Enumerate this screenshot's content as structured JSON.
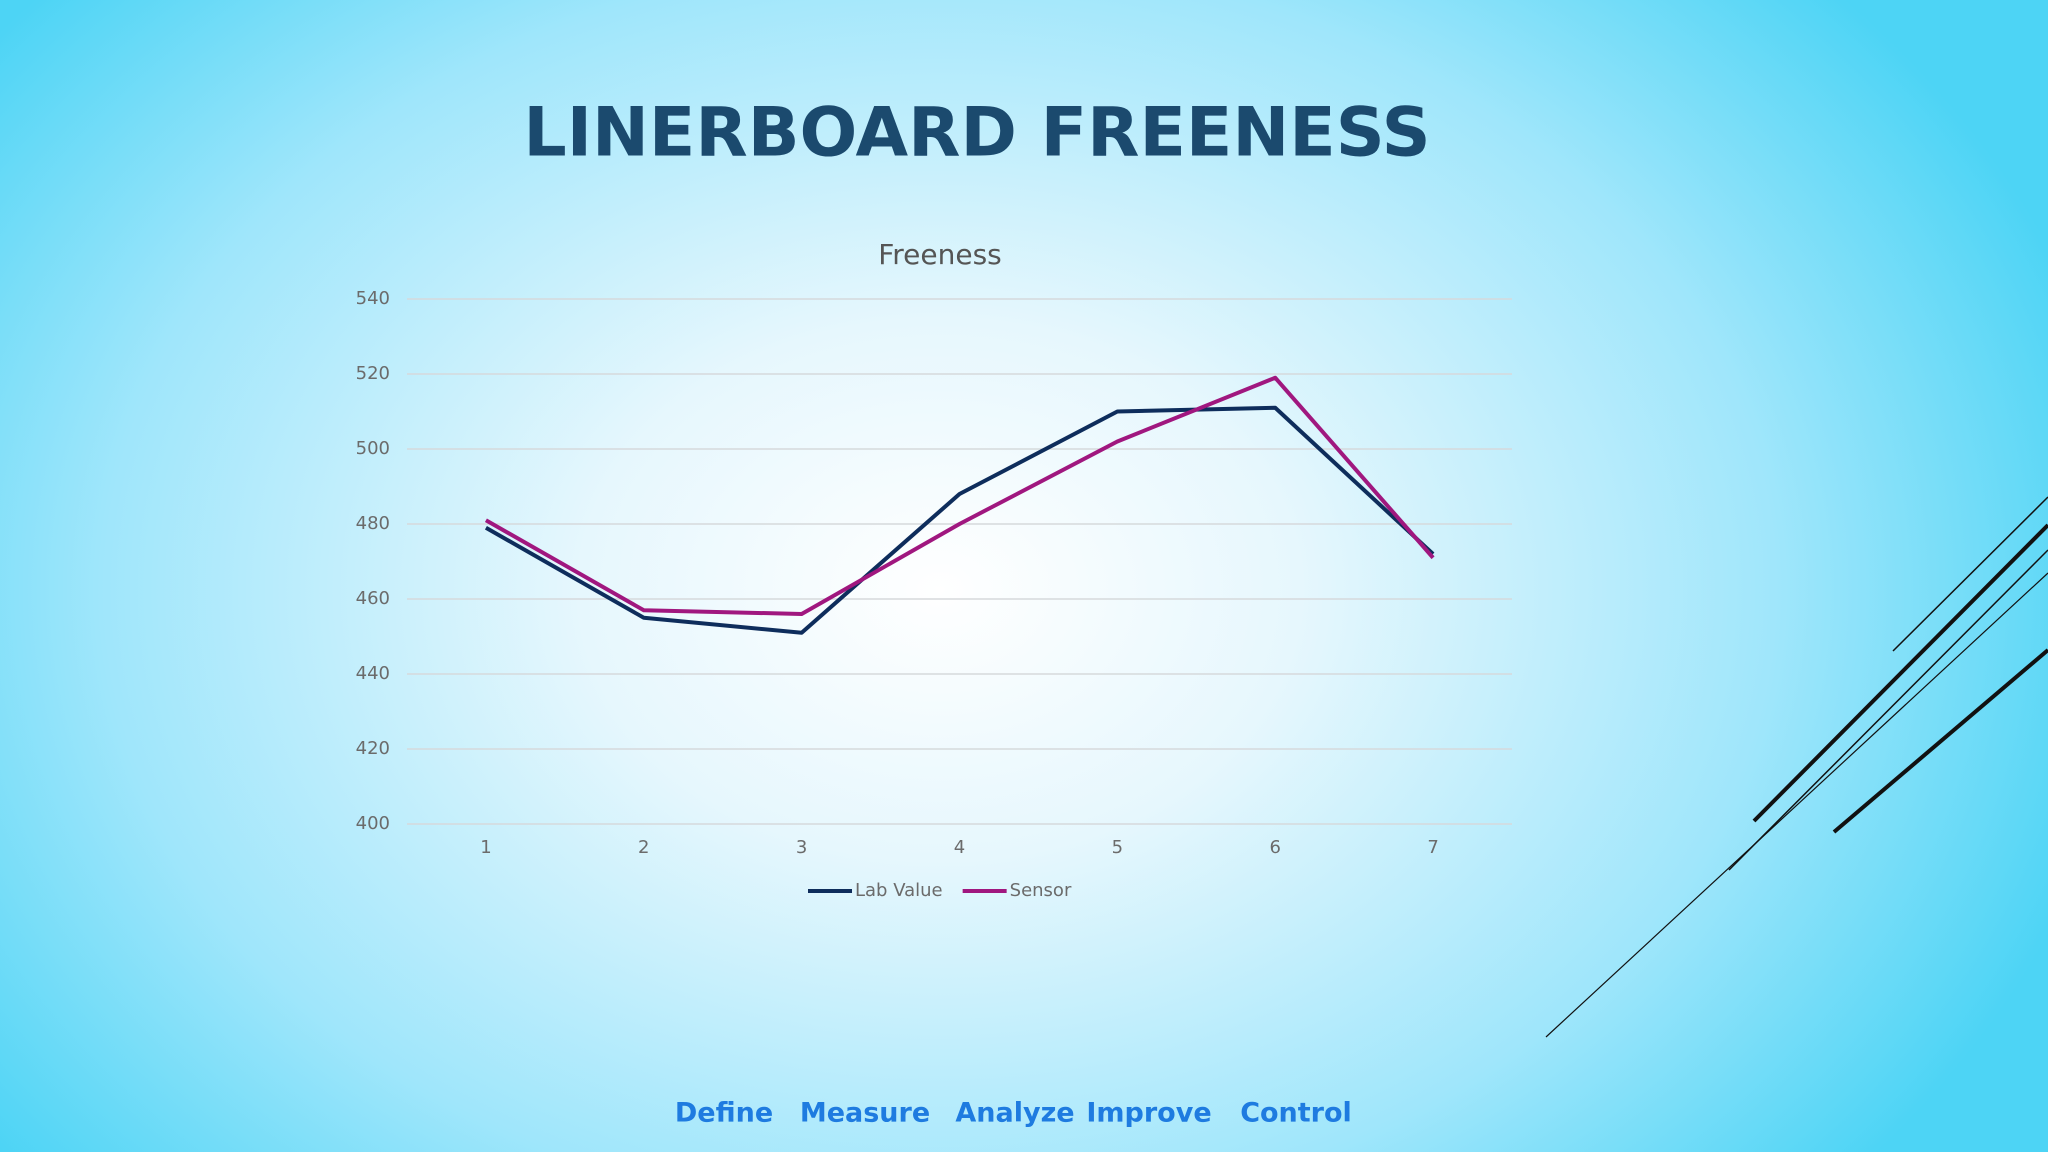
{
  "slide": {
    "title": "LINERBOARD FREENESS",
    "nav": [
      "Define",
      "Measure",
      "Analyze",
      "Improve",
      "Control"
    ]
  },
  "chart_data": {
    "type": "line",
    "title": "Freeness",
    "categories": [
      "1",
      "2",
      "3",
      "4",
      "5",
      "6",
      "7"
    ],
    "series": [
      {
        "name": "Lab Value",
        "color": "#0e2d5c",
        "values": [
          479,
          455,
          451,
          488,
          510,
          511,
          472
        ]
      },
      {
        "name": "Sensor",
        "color": "#a0177f",
        "values": [
          481,
          457,
          456,
          480,
          502,
          519,
          471
        ]
      }
    ],
    "ylim": [
      400,
      540
    ],
    "yticks": [
      400,
      420,
      440,
      460,
      480,
      500,
      520,
      540
    ],
    "grid": true,
    "legend": "bottom"
  }
}
